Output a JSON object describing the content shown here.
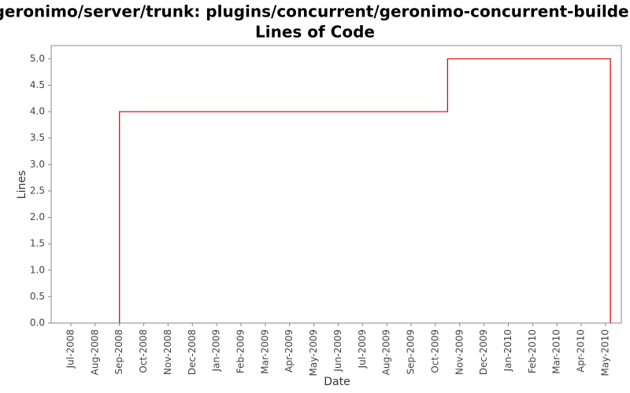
{
  "chart_data": {
    "type": "line",
    "title": "/geronimo/server/trunk: plugins/concurrent/geronimo-concurrent-builder/",
    "subtitle": "Lines of Code",
    "x_label": "Date",
    "y_label": "Lines",
    "series": [
      {
        "name": "Lines",
        "color": "#cc0000",
        "x": [
          2,
          2,
          15.5,
          15.5,
          22.2,
          22.2
        ],
        "values": [
          0,
          4,
          4,
          5,
          5,
          0
        ]
      }
    ],
    "xlim": [
      -0.81,
      22.65
    ],
    "xticks": [
      {
        "value": 0,
        "label": "Jul-2008"
      },
      {
        "value": 1,
        "label": "Aug-2008"
      },
      {
        "value": 2,
        "label": "Sep-2008"
      },
      {
        "value": 3,
        "label": "Oct-2008"
      },
      {
        "value": 4,
        "label": "Nov-2008"
      },
      {
        "value": 5,
        "label": "Dec-2008"
      },
      {
        "value": 6,
        "label": "Jan-2009"
      },
      {
        "value": 7,
        "label": "Feb-2009"
      },
      {
        "value": 8,
        "label": "Mar-2009"
      },
      {
        "value": 9,
        "label": "Apr-2009"
      },
      {
        "value": 10,
        "label": "May-2009"
      },
      {
        "value": 11,
        "label": "Jun-2009"
      },
      {
        "value": 12,
        "label": "Jul-2009"
      },
      {
        "value": 13,
        "label": "Aug-2009"
      },
      {
        "value": 14,
        "label": "Sep-2009"
      },
      {
        "value": 15,
        "label": "Oct-2009"
      },
      {
        "value": 16,
        "label": "Nov-2009"
      },
      {
        "value": 17,
        "label": "Dec-2009"
      },
      {
        "value": 18,
        "label": "Jan-2010"
      },
      {
        "value": 19,
        "label": "Feb-2010"
      },
      {
        "value": 20,
        "label": "Mar-2010"
      },
      {
        "value": 21,
        "label": "Apr-2010"
      },
      {
        "value": 22,
        "label": "May-2010"
      }
    ],
    "ylim": [
      0,
      5.25
    ],
    "yticks": [
      {
        "value": 0,
        "label": "0.0"
      },
      0.5,
      {
        "value": 1,
        "label": "1.0"
      },
      1.5,
      {
        "value": 2,
        "label": "2.0"
      },
      2.5,
      {
        "value": 3,
        "label": "3.0"
      },
      3.5,
      {
        "value": 4,
        "label": "4.0"
      },
      4.5,
      {
        "value": 5,
        "label": "5.0"
      }
    ],
    "grid": false
  }
}
